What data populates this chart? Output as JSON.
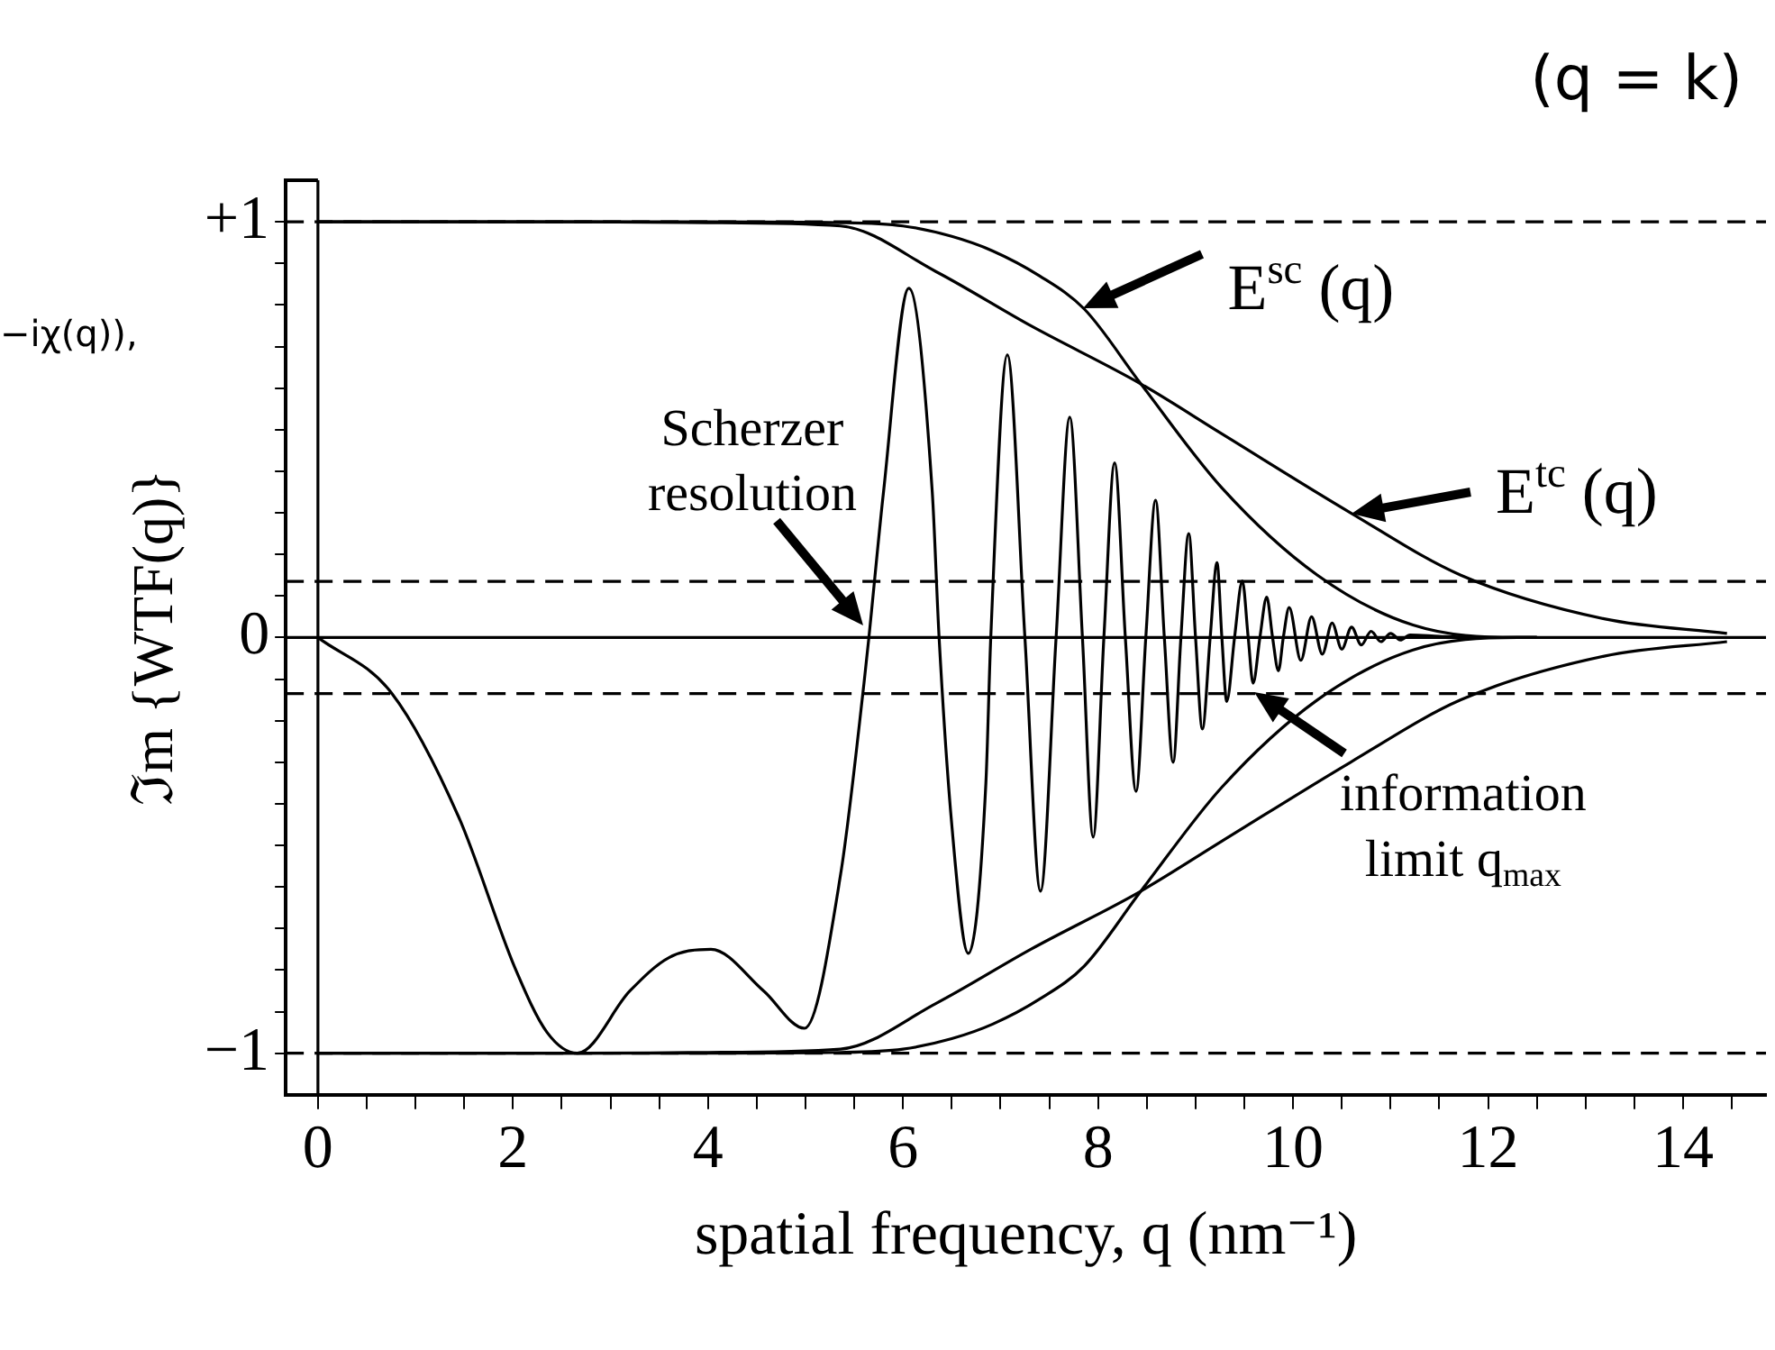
{
  "chart_data": {
    "type": "line",
    "xlabel": "spatial frequency, q (nm⁻¹)",
    "ylabel": "ℑm {WTF(q)}",
    "xlim": [
      -0.33,
      14.85
    ],
    "ylim": [
      -1.1,
      1.1
    ],
    "xticks": [
      0,
      {
        "value": 0.5,
        "label": null
      },
      2,
      {
        "value": 1,
        "label": null
      },
      {
        "value": 1.5,
        "label": null
      },
      {
        "value": 2.5,
        "label": null
      },
      {
        "value": 3,
        "label": null
      },
      {
        "value": 3.5,
        "label": null
      },
      4,
      {
        "value": 4.5,
        "label": null
      },
      {
        "value": 5,
        "label": null
      },
      {
        "value": 5.5,
        "label": null
      },
      6,
      {
        "value": 6.5,
        "label": null
      },
      {
        "value": 7,
        "label": null
      },
      {
        "value": 7.5,
        "label": null
      },
      8,
      {
        "value": 8.5,
        "label": null
      },
      {
        "value": 9,
        "label": null
      },
      {
        "value": 9.5,
        "label": null
      },
      10,
      {
        "value": 10.5,
        "label": null
      },
      {
        "value": 11,
        "label": null
      },
      {
        "value": 11.5,
        "label": null
      },
      12,
      {
        "value": 12.5,
        "label": null
      },
      {
        "value": 13,
        "label": null
      },
      {
        "value": 13.5,
        "label": null
      },
      14,
      {
        "value": 14.5,
        "label": null
      }
    ],
    "yticks": [
      {
        "value": 1,
        "label": "+1"
      },
      {
        "value": 0.9,
        "label": null
      },
      {
        "value": 0.8,
        "label": null
      },
      {
        "value": 0.7,
        "label": null
      },
      {
        "value": 0.6,
        "label": null
      },
      {
        "value": 0.5,
        "label": null
      },
      {
        "value": 0.4,
        "label": null
      },
      {
        "value": 0.3,
        "label": null
      },
      {
        "value": 0.2,
        "label": null
      },
      {
        "value": 0.1,
        "label": null
      },
      0,
      {
        "value": -0.1,
        "label": null
      },
      {
        "value": -0.2,
        "label": null
      },
      {
        "value": -0.3,
        "label": null
      },
      {
        "value": -0.4,
        "label": null
      },
      {
        "value": -0.5,
        "label": null
      },
      {
        "value": -0.6,
        "label": null
      },
      {
        "value": -0.7,
        "label": null
      },
      {
        "value": -0.8,
        "label": null
      },
      {
        "value": -0.9,
        "label": null
      },
      {
        "value": -1,
        "label": "−1"
      }
    ],
    "grid": false,
    "legend": false,
    "series": [
      {
        "color": "#000000",
        "x": [
          0,
          2.66,
          4,
          5.36,
          6.34,
          7.31,
          8.44,
          9.27,
          10.59,
          11.72,
          13.19,
          14.45
        ],
        "values": [
          1,
          1,
          0.998,
          0.99,
          0.88,
          0.75,
          0.61,
          0.49,
          0.3,
          0.15,
          0.045,
          0.01
        ]
      },
      {
        "color": "#000000",
        "x": [
          0,
          2.66,
          4,
          5.36,
          6.34,
          7.31,
          8.44,
          9.27,
          10.59,
          11.72,
          13.19,
          14.45
        ],
        "values": [
          -1,
          -1,
          -0.998,
          -0.99,
          -0.88,
          -0.75,
          -0.61,
          -0.49,
          -0.3,
          -0.15,
          -0.045,
          -0.01
        ]
      },
      {
        "color": "#000000",
        "x": [
          0,
          2,
          4,
          5.36,
          6,
          6.5,
          6.92,
          7.4,
          7.86,
          8.44,
          9.27,
          10.25,
          11.23,
          12.3,
          12.5
        ],
        "values": [
          1,
          1,
          1,
          0.998,
          0.99,
          0.965,
          0.93,
          0.87,
          0.79,
          0.61,
          0.36,
          0.15,
          0.03,
          0,
          0
        ]
      },
      {
        "color": "#000000",
        "x": [
          0,
          2,
          4,
          5.36,
          6,
          6.5,
          6.92,
          7.4,
          7.86,
          8.44,
          9.27,
          10.25,
          11.23,
          12.3,
          12.5
        ],
        "values": [
          -1,
          -1,
          -1,
          -0.998,
          -0.99,
          -0.965,
          -0.93,
          -0.87,
          -0.79,
          -0.61,
          -0.36,
          -0.15,
          -0.03,
          0,
          0
        ]
      },
      {
        "color": "#000000",
        "x": [
          0,
          0.76,
          1.44,
          2.03,
          2.35,
          2.66,
          3.2,
          3.6,
          4.03,
          4.57,
          4.99,
          5.36,
          5.6,
          5.65,
          5.8,
          6.06,
          6.3,
          6.37,
          6.5,
          6.67,
          6.85,
          6.9,
          7.07,
          7.25,
          7.41,
          7.57,
          7.71,
          7.84,
          7.95,
          8.06,
          8.17,
          8.28,
          8.39,
          8.49,
          8.59,
          8.68,
          8.77,
          8.85,
          8.93,
          9,
          9.07,
          9.15,
          9.22,
          9.27,
          9.32,
          9.4,
          9.48,
          9.54,
          9.59,
          9.66,
          9.73,
          9.79,
          9.85,
          9.9,
          9.96,
          10.08,
          10.19,
          10.3,
          10.4,
          10.5,
          10.6,
          10.7,
          10.8,
          10.9,
          11,
          11.1,
          11.2,
          11.5,
          12,
          12.5
        ],
        "values": [
          0,
          -0.135,
          -0.43,
          -0.8,
          -0.95,
          -1,
          -0.85,
          -0.77,
          -0.75,
          -0.85,
          -0.94,
          -0.57,
          -0.11,
          0,
          0.35,
          0.84,
          0.35,
          0,
          -0.45,
          -0.76,
          -0.35,
          0,
          0.68,
          0,
          -0.61,
          0,
          0.53,
          0,
          -0.48,
          0,
          0.42,
          0,
          -0.37,
          0,
          0.33,
          0,
          -0.3,
          0,
          0.25,
          0,
          -0.22,
          0,
          0.18,
          0,
          -0.154,
          0,
          0.136,
          0,
          -0.11,
          0,
          0.097,
          0,
          -0.08,
          0,
          0.072,
          -0.055,
          0.05,
          -0.04,
          0.035,
          -0.028,
          0.025,
          -0.018,
          0.015,
          -0.01,
          0.01,
          -0.006,
          0.006,
          0.003,
          0,
          0
        ]
      }
    ],
    "ref_lines": [
      {
        "axis": "y",
        "value": 1,
        "line_style": "dashed",
        "color": "#000000"
      },
      {
        "axis": "y",
        "value": 0.135,
        "line_style": "dashed",
        "color": "#000000"
      },
      {
        "axis": "y",
        "value": -0.135,
        "line_style": "dashed",
        "color": "#000000"
      },
      {
        "axis": "y",
        "value": -1,
        "line_style": "dashed",
        "color": "#000000"
      },
      {
        "axis": "y",
        "value": 0,
        "line_style": "solid",
        "color": "#000000"
      },
      {
        "axis": "x",
        "value": 0,
        "line_style": "solid",
        "color": "#000000"
      }
    ],
    "annotations": [
      {
        "text": "E$^{sc}$ (q)",
        "x": 7.85,
        "y": 0.79
      },
      {
        "text": "E$^{tc}$ (q)",
        "x": 10.6,
        "y": 0.3
      },
      {
        "text": "Scherzer resolution",
        "x": 5.6,
        "y": 0.03
      },
      {
        "text": "information limit q$_{max}$",
        "x": 9.6,
        "y": -0.13
      },
      "−iχ(q)),",
      "(q = k)"
    ]
  }
}
